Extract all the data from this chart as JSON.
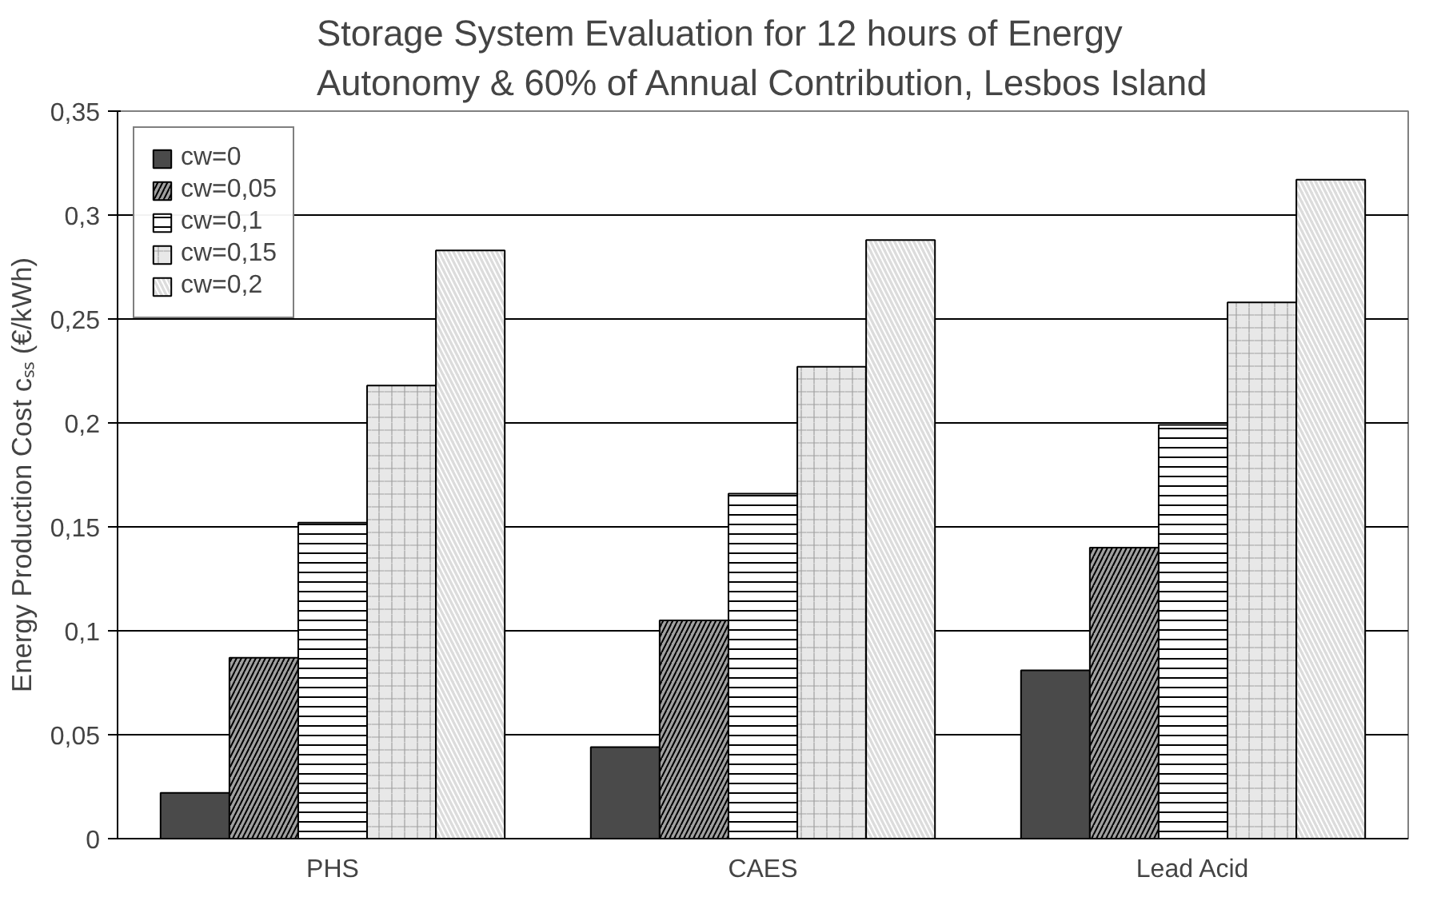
{
  "chart_data": {
    "type": "bar",
    "title": "Storage System Evaluation for 12 hours of Energy\nAutonomy & 60% of Annual Contribution, Lesbos Island",
    "ylabel": "Energy Production Cost cₛₛ (€/kWh)",
    "categories": [
      "PHS",
      "CAES",
      "Lead Acid"
    ],
    "series": [
      {
        "name": "cw=0",
        "color": "#4a4a4a",
        "values": [
          0.022,
          0.044,
          0.081
        ]
      },
      {
        "name": "cw=0,05",
        "color": "#a0a0a0",
        "values": [
          0.087,
          0.105,
          0.14
        ]
      },
      {
        "name": "cw=0,1",
        "color": "#ffffff",
        "values": [
          0.152,
          0.166,
          0.199
        ]
      },
      {
        "name": "cw=0,15",
        "color": "#e8e8e8",
        "values": [
          0.218,
          0.227,
          0.258
        ]
      },
      {
        "name": "cw=0,2",
        "color": "#dcdcdc",
        "values": [
          0.283,
          0.288,
          0.317
        ]
      }
    ],
    "ylim": [
      0,
      0.35
    ],
    "yticks": [
      0,
      {
        "value": 0.05,
        "label": "0,05"
      },
      {
        "value": 0.1,
        "label": "0,1"
      },
      {
        "value": 0.15,
        "label": "0,15"
      },
      {
        "value": 0.2,
        "label": "0,2"
      },
      {
        "value": 0.25,
        "label": "0,25"
      },
      {
        "value": 0.3,
        "label": "0,3"
      },
      {
        "value": 0.35,
        "label": "0,35"
      }
    ],
    "grid": "y",
    "legend": "top left"
  }
}
